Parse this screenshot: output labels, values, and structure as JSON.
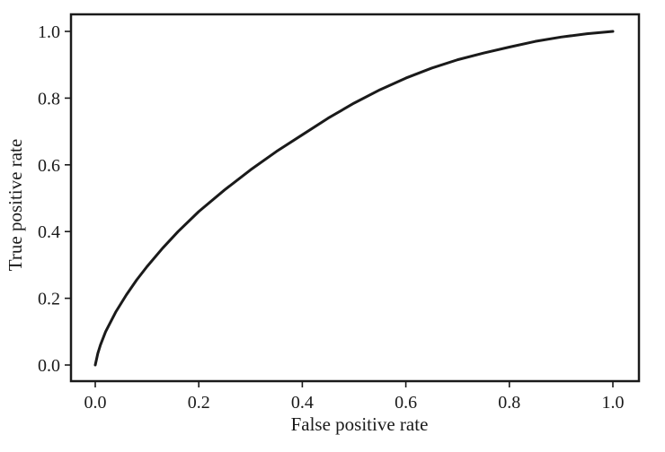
{
  "chart_data": {
    "type": "line",
    "title": "",
    "xlabel": "False positive rate",
    "ylabel": "True positive rate",
    "xlim": [
      0.0,
      1.0
    ],
    "ylim": [
      0.0,
      1.0
    ],
    "xticks": [
      "0.0",
      "0.2",
      "0.4",
      "0.6",
      "0.8",
      "1.0"
    ],
    "yticks": [
      "0.0",
      "0.2",
      "0.4",
      "0.6",
      "0.8",
      "1.0"
    ],
    "grid": false,
    "legend": "none",
    "line_color": "#1a1a1a",
    "series": [
      {
        "x": [
          0.0,
          0.005,
          0.01,
          0.02,
          0.04,
          0.06,
          0.08,
          0.1,
          0.13,
          0.16,
          0.2,
          0.25,
          0.3,
          0.35,
          0.4,
          0.45,
          0.5,
          0.55,
          0.6,
          0.65,
          0.7,
          0.75,
          0.8,
          0.85,
          0.9,
          0.95,
          1.0
        ],
        "y": [
          0.0,
          0.035,
          0.06,
          0.1,
          0.16,
          0.21,
          0.255,
          0.295,
          0.35,
          0.4,
          0.46,
          0.525,
          0.585,
          0.64,
          0.69,
          0.74,
          0.785,
          0.825,
          0.86,
          0.89,
          0.915,
          0.935,
          0.953,
          0.97,
          0.983,
          0.993,
          1.0
        ]
      }
    ]
  }
}
